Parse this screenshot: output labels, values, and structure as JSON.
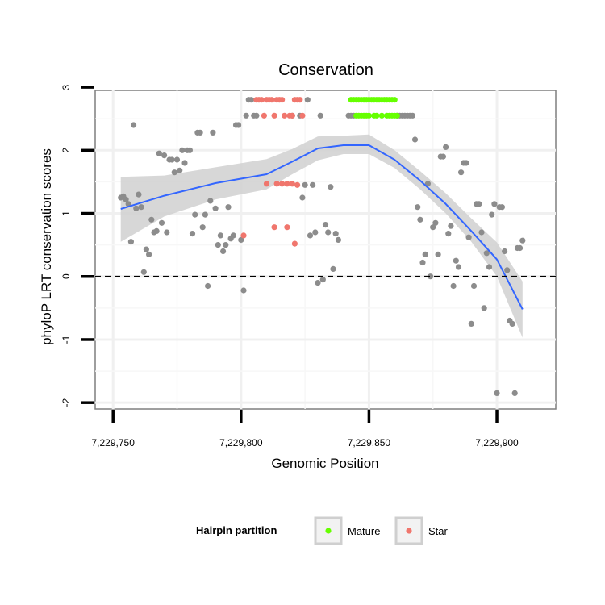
{
  "chart_data": {
    "type": "scatter",
    "title": "Conservation",
    "xlabel": "Genomic Position",
    "ylabel": "phyloP LRT conservation scores",
    "xlim": [
      7229743,
      7229923
    ],
    "ylim": [
      -2.1,
      2.95
    ],
    "x_ticks": [
      7229750,
      7229800,
      7229850,
      7229900
    ],
    "x_tick_labels": [
      "7,229,750",
      "7,229,800",
      "7,229,850",
      "7,229,900"
    ],
    "y_ticks": [
      -2,
      -1,
      0,
      1,
      2,
      3
    ],
    "y_tick_labels": [
      "-2",
      "-1",
      "0",
      "1",
      "2",
      "3"
    ],
    "reference_line": {
      "y": 0,
      "style": "dashed"
    },
    "grid": true,
    "legend": {
      "title": "Hairpin partition",
      "position": "bottom",
      "entries": [
        {
          "label": "Mature",
          "color": "#66ff00"
        },
        {
          "label": "Star",
          "color": "#f0766d"
        }
      ]
    },
    "colors": {
      "other": "#8c8c8c",
      "smooth_line": "#3366ff",
      "ribbon": "#d0d0d0"
    },
    "series": [
      {
        "key": "other",
        "points": [
          [
            7229753,
            1.25
          ],
          [
            7229754,
            1.27
          ],
          [
            7229755,
            1.22
          ],
          [
            7229756,
            1.15
          ],
          [
            7229757,
            0.55
          ],
          [
            7229758,
            2.4
          ],
          [
            7229759,
            1.08
          ],
          [
            7229760,
            1.3
          ],
          [
            7229761,
            1.1
          ],
          [
            7229762,
            0.07
          ],
          [
            7229763,
            0.43
          ],
          [
            7229764,
            0.35
          ],
          [
            7229765,
            0.9
          ],
          [
            7229766,
            0.7
          ],
          [
            7229767,
            0.72
          ],
          [
            7229768,
            1.95
          ],
          [
            7229769,
            0.85
          ],
          [
            7229770,
            1.92
          ],
          [
            7229771,
            0.7
          ],
          [
            7229772,
            1.85
          ],
          [
            7229773,
            1.85
          ],
          [
            7229774,
            1.65
          ],
          [
            7229775,
            1.85
          ],
          [
            7229776,
            1.68
          ],
          [
            7229777,
            2.0
          ],
          [
            7229778,
            1.8
          ],
          [
            7229779,
            2.0
          ],
          [
            7229780,
            2.0
          ],
          [
            7229781,
            0.68
          ],
          [
            7229782,
            0.98
          ],
          [
            7229783,
            2.28
          ],
          [
            7229784,
            2.28
          ],
          [
            7229785,
            0.78
          ],
          [
            7229786,
            0.98
          ],
          [
            7229787,
            -0.15
          ],
          [
            7229788,
            1.2
          ],
          [
            7229789,
            2.28
          ],
          [
            7229790,
            1.08
          ],
          [
            7229791,
            0.5
          ],
          [
            7229792,
            0.65
          ],
          [
            7229793,
            0.4
          ],
          [
            7229794,
            0.5
          ],
          [
            7229795,
            1.1
          ],
          [
            7229796,
            0.6
          ],
          [
            7229797,
            0.65
          ],
          [
            7229798,
            2.4
          ],
          [
            7229799,
            2.4
          ],
          [
            7229800,
            0.58
          ],
          [
            7229801,
            -0.22
          ],
          [
            7229802,
            2.55
          ],
          [
            7229803,
            2.8
          ],
          [
            7229804,
            2.8
          ],
          [
            7229805,
            2.55
          ],
          [
            7229806,
            2.55
          ],
          [
            7229820,
            2.55
          ],
          [
            7229823,
            2.55
          ],
          [
            7229824,
            1.25
          ],
          [
            7229825,
            1.45
          ],
          [
            7229826,
            2.8
          ],
          [
            7229827,
            0.65
          ],
          [
            7229828,
            1.45
          ],
          [
            7229829,
            0.7
          ],
          [
            7229830,
            -0.1
          ],
          [
            7229831,
            2.55
          ],
          [
            7229832,
            -0.05
          ],
          [
            7229833,
            0.82
          ],
          [
            7229834,
            0.7
          ],
          [
            7229835,
            1.42
          ],
          [
            7229836,
            0.12
          ],
          [
            7229837,
            0.68
          ],
          [
            7229838,
            0.58
          ],
          [
            7229842,
            2.55
          ],
          [
            7229843,
            2.55
          ],
          [
            7229844,
            2.55
          ],
          [
            7229861,
            2.55
          ],
          [
            7229862,
            2.55
          ],
          [
            7229863,
            2.55
          ],
          [
            7229864,
            2.55
          ],
          [
            7229865,
            2.55
          ],
          [
            7229866,
            2.55
          ],
          [
            7229867,
            2.55
          ],
          [
            7229868,
            2.17
          ],
          [
            7229869,
            1.1
          ],
          [
            7229870,
            0.9
          ],
          [
            7229871,
            0.22
          ],
          [
            7229872,
            0.35
          ],
          [
            7229873,
            1.47
          ],
          [
            7229874,
            0.0
          ],
          [
            7229875,
            0.78
          ],
          [
            7229876,
            0.85
          ],
          [
            7229877,
            0.35
          ],
          [
            7229878,
            1.9
          ],
          [
            7229879,
            1.9
          ],
          [
            7229880,
            2.05
          ],
          [
            7229881,
            0.68
          ],
          [
            7229882,
            0.8
          ],
          [
            7229883,
            -0.15
          ],
          [
            7229884,
            0.25
          ],
          [
            7229885,
            0.15
          ],
          [
            7229886,
            1.65
          ],
          [
            7229887,
            1.8
          ],
          [
            7229888,
            1.8
          ],
          [
            7229889,
            0.62
          ],
          [
            7229890,
            -0.75
          ],
          [
            7229891,
            -0.15
          ],
          [
            7229892,
            1.15
          ],
          [
            7229893,
            1.15
          ],
          [
            7229894,
            0.7
          ],
          [
            7229895,
            -0.5
          ],
          [
            7229896,
            0.37
          ],
          [
            7229897,
            0.15
          ],
          [
            7229898,
            0.98
          ],
          [
            7229899,
            1.15
          ],
          [
            7229900,
            -1.85
          ],
          [
            7229901,
            1.1
          ],
          [
            7229902,
            1.1
          ],
          [
            7229903,
            0.4
          ],
          [
            7229904,
            0.1
          ],
          [
            7229905,
            -0.7
          ],
          [
            7229906,
            -0.75
          ],
          [
            7229907,
            -1.85
          ],
          [
            7229908,
            0.45
          ],
          [
            7229909,
            0.45
          ],
          [
            7229910,
            0.57
          ]
        ]
      },
      {
        "key": "Star",
        "points": [
          [
            7229806,
            2.8
          ],
          [
            7229807,
            2.8
          ],
          [
            7229808,
            2.8
          ],
          [
            7229809,
            2.55
          ],
          [
            7229810,
            2.8
          ],
          [
            7229811,
            2.8
          ],
          [
            7229812,
            2.8
          ],
          [
            7229813,
            2.55
          ],
          [
            7229814,
            2.8
          ],
          [
            7229815,
            2.8
          ],
          [
            7229816,
            2.8
          ],
          [
            7229817,
            2.55
          ],
          [
            7229819,
            2.55
          ],
          [
            7229820,
            2.55
          ],
          [
            7229821,
            2.8
          ],
          [
            7229822,
            2.8
          ],
          [
            7229823,
            2.8
          ],
          [
            7229824,
            2.55
          ],
          [
            7229801,
            0.65
          ],
          [
            7229810,
            1.47
          ],
          [
            7229814,
            1.47
          ],
          [
            7229816,
            1.47
          ],
          [
            7229818,
            1.47
          ],
          [
            7229820,
            1.47
          ],
          [
            7229813,
            0.78
          ],
          [
            7229818,
            0.78
          ],
          [
            7229821,
            0.52
          ],
          [
            7229822,
            1.45
          ]
        ]
      },
      {
        "key": "Mature",
        "points": [
          [
            7229843,
            2.8
          ],
          [
            7229844,
            2.8
          ],
          [
            7229845,
            2.8
          ],
          [
            7229846,
            2.8
          ],
          [
            7229847,
            2.8
          ],
          [
            7229848,
            2.8
          ],
          [
            7229849,
            2.8
          ],
          [
            7229850,
            2.8
          ],
          [
            7229851,
            2.8
          ],
          [
            7229852,
            2.8
          ],
          [
            7229853,
            2.8
          ],
          [
            7229854,
            2.8
          ],
          [
            7229855,
            2.8
          ],
          [
            7229856,
            2.8
          ],
          [
            7229857,
            2.8
          ],
          [
            7229858,
            2.8
          ],
          [
            7229859,
            2.8
          ],
          [
            7229860,
            2.8
          ],
          [
            7229845,
            2.55
          ],
          [
            7229846,
            2.55
          ],
          [
            7229847,
            2.55
          ],
          [
            7229848,
            2.55
          ],
          [
            7229849,
            2.55
          ],
          [
            7229850,
            2.55
          ],
          [
            7229852,
            2.55
          ],
          [
            7229853,
            2.55
          ],
          [
            7229855,
            2.55
          ],
          [
            7229857,
            2.55
          ],
          [
            7229858,
            2.55
          ],
          [
            7229859,
            2.55
          ],
          [
            7229860,
            2.55
          ],
          [
            7229861,
            2.55
          ]
        ]
      }
    ],
    "smooth": {
      "x": [
        7229753,
        7229770,
        7229790,
        7229810,
        7229820,
        7229830,
        7229840,
        7229850,
        7229860,
        7229870,
        7229880,
        7229890,
        7229900,
        7229910
      ],
      "y": [
        1.07,
        1.28,
        1.48,
        1.62,
        1.82,
        2.03,
        2.08,
        2.08,
        1.85,
        1.52,
        1.15,
        0.72,
        0.27,
        -0.52
      ],
      "lower": [
        0.55,
        0.95,
        1.22,
        1.38,
        1.62,
        1.84,
        1.94,
        1.94,
        1.72,
        1.38,
        1.0,
        0.55,
        0.0,
        -0.97
      ],
      "upper": [
        1.58,
        1.6,
        1.73,
        1.86,
        2.02,
        2.22,
        2.23,
        2.25,
        2.0,
        1.67,
        1.32,
        0.92,
        0.54,
        -0.08
      ]
    }
  }
}
